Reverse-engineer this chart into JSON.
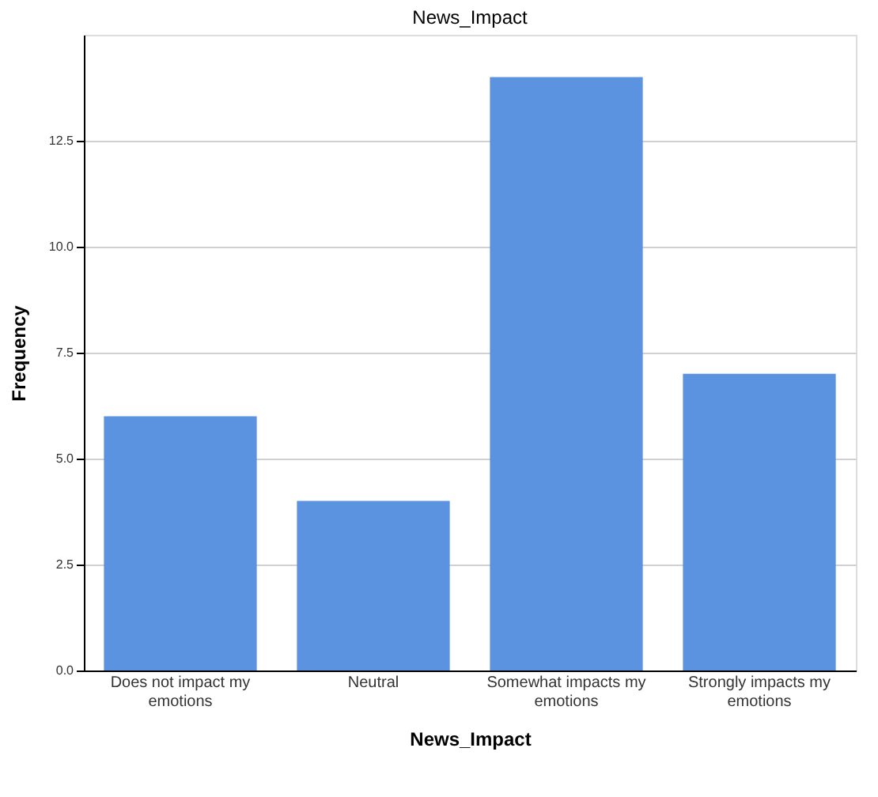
{
  "chart_data": {
    "type": "bar",
    "title": "News_Impact",
    "xlabel": "News_Impact",
    "ylabel": "Frequency",
    "categories": [
      "Does not impact my emotions",
      "Neutral",
      "Somewhat impacts my emotions",
      "Strongly impacts my emotions"
    ],
    "values": [
      6,
      4,
      14,
      7
    ],
    "color": "#5b93e0",
    "ylim": [
      0,
      15
    ],
    "yticks": [
      {
        "value": 0,
        "label": "0.0"
      },
      {
        "value": 2.5,
        "label": "2.5"
      },
      {
        "value": 5,
        "label": "5.0"
      },
      {
        "value": 7.5,
        "label": "7.5"
      },
      {
        "value": 10,
        "label": "10.0"
      },
      {
        "value": 12.5,
        "label": "12.5"
      }
    ],
    "grid": "y"
  }
}
